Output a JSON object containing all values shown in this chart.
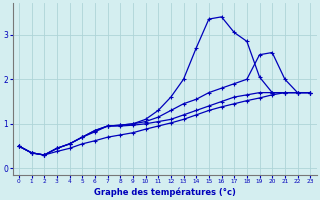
{
  "xlabel": "Graphe des températures (°c)",
  "background_color": "#d4eef0",
  "grid_color": "#aed4d8",
  "line_color": "#0000bb",
  "xlim": [
    -0.5,
    23.5
  ],
  "ylim": [
    -0.15,
    3.7
  ],
  "xticks": [
    0,
    1,
    2,
    3,
    4,
    5,
    6,
    7,
    8,
    9,
    10,
    11,
    12,
    13,
    14,
    15,
    16,
    17,
    18,
    19,
    20,
    21,
    22,
    23
  ],
  "yticks": [
    0,
    1,
    2,
    3
  ],
  "series": [
    {
      "x": [
        0,
        1,
        2,
        3,
        4,
        5,
        6,
        7,
        8,
        9,
        10,
        11,
        12,
        13,
        14,
        15,
        16,
        17,
        18,
        19,
        20,
        21,
        22,
        23
      ],
      "y": [
        0.5,
        0.35,
        0.3,
        0.45,
        0.55,
        0.7,
        0.85,
        0.95,
        0.97,
        1.0,
        1.1,
        1.3,
        1.6,
        2.0,
        2.7,
        3.35,
        3.4,
        3.05,
        2.85,
        2.05,
        1.7,
        1.7,
        1.7,
        1.7
      ]
    },
    {
      "x": [
        0,
        1,
        2,
        3,
        4,
        5,
        6,
        7,
        8,
        9,
        10,
        11,
        12,
        13,
        14,
        15,
        16,
        17,
        18,
        19,
        20,
        21,
        22,
        23
      ],
      "y": [
        0.5,
        0.35,
        0.3,
        0.45,
        0.55,
        0.7,
        0.85,
        0.95,
        0.97,
        1.0,
        1.05,
        1.15,
        1.3,
        1.45,
        1.55,
        1.7,
        1.8,
        1.9,
        2.0,
        2.55,
        2.6,
        2.0,
        1.7,
        1.7
      ]
    },
    {
      "x": [
        0,
        1,
        2,
        3,
        4,
        5,
        6,
        7,
        8,
        9,
        10,
        11,
        12,
        13,
        14,
        15,
        16,
        17,
        18,
        19,
        20,
        21,
        22,
        23
      ],
      "y": [
        0.5,
        0.35,
        0.3,
        0.45,
        0.55,
        0.7,
        0.82,
        0.95,
        0.95,
        0.97,
        1.0,
        1.05,
        1.1,
        1.2,
        1.3,
        1.4,
        1.5,
        1.6,
        1.65,
        1.7,
        1.7,
        1.7,
        1.7,
        1.7
      ]
    },
    {
      "x": [
        0,
        1,
        2,
        3,
        4,
        5,
        6,
        7,
        8,
        9,
        10,
        11,
        12,
        13,
        14,
        15,
        16,
        17,
        18,
        19,
        20,
        21,
        22,
        23
      ],
      "y": [
        0.5,
        0.35,
        0.3,
        0.38,
        0.45,
        0.55,
        0.62,
        0.7,
        0.75,
        0.8,
        0.88,
        0.95,
        1.02,
        1.1,
        1.2,
        1.3,
        1.38,
        1.45,
        1.52,
        1.58,
        1.65,
        1.7,
        1.7,
        1.7
      ]
    }
  ]
}
